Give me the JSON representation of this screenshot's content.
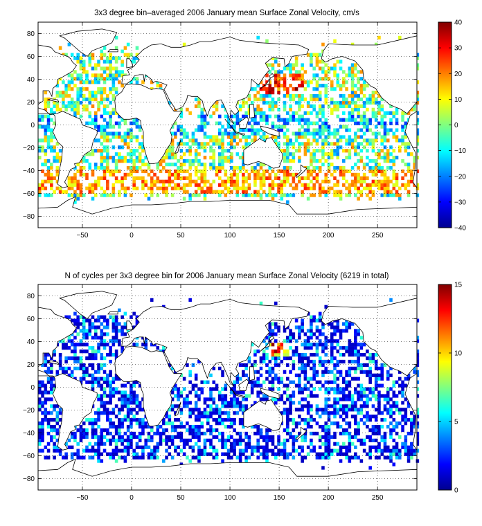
{
  "chart_data": [
    {
      "type": "heatmap",
      "title": "3x3 degree bin–averaged 2006 January mean Surface Zonal Velocity, cm/s",
      "xlabel": "",
      "ylabel": "",
      "xlim": [
        -95,
        290
      ],
      "ylim": [
        -90,
        90
      ],
      "x_ticks": [
        -50,
        0,
        50,
        100,
        150,
        200,
        250
      ],
      "y_ticks": [
        80,
        60,
        40,
        20,
        0,
        -20,
        -40,
        -60,
        -80
      ],
      "grid": true,
      "colorbar": {
        "min": -40,
        "max": 40,
        "ticks": [
          40,
          30,
          20,
          10,
          0,
          -10,
          -20,
          -30,
          -40
        ],
        "colormap": "jet"
      },
      "cell_size_deg": 3,
      "seed": 11
    },
    {
      "type": "heatmap",
      "title": "N of cycles per 3x3 degree bin for 2006 January mean Surface Zonal Velocity (6219 in total)",
      "xlabel": "",
      "ylabel": "",
      "xlim": [
        -95,
        290
      ],
      "ylim": [
        -90,
        90
      ],
      "x_ticks": [
        -50,
        0,
        50,
        100,
        150,
        200,
        250
      ],
      "y_ticks": [
        80,
        60,
        40,
        20,
        0,
        -20,
        -40,
        -60,
        -80
      ],
      "grid": true,
      "colorbar": {
        "min": 0,
        "max": 15,
        "ticks": [
          15,
          10,
          5,
          0
        ],
        "colormap": "jet"
      },
      "total_cycles": 6219,
      "cell_size_deg": 3,
      "seed": 29
    }
  ]
}
